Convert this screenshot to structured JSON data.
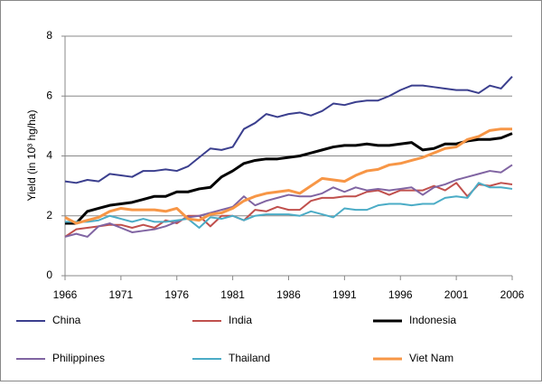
{
  "chart_data": {
    "type": "line",
    "ylabel": "Yield (in 10³ hg/ha)",
    "x": [
      1966,
      1967,
      1968,
      1969,
      1970,
      1971,
      1972,
      1973,
      1974,
      1975,
      1976,
      1977,
      1978,
      1979,
      1980,
      1981,
      1982,
      1983,
      1984,
      1985,
      1986,
      1987,
      1988,
      1989,
      1990,
      1991,
      1992,
      1993,
      1994,
      1995,
      1996,
      1997,
      1998,
      1999,
      2000,
      2001,
      2002,
      2003,
      2004,
      2005,
      2006
    ],
    "xlim": [
      1966,
      2006
    ],
    "xticks": [
      1966,
      1971,
      1976,
      1981,
      1986,
      1991,
      1996,
      2001,
      2006
    ],
    "ylim": [
      0,
      8
    ],
    "yticks": [
      0,
      2,
      4,
      6,
      8
    ],
    "grid": true,
    "legend": "bottom",
    "series": [
      {
        "name": "China",
        "color": "#3b3f8e",
        "values": [
          3.15,
          3.1,
          3.2,
          3.15,
          3.4,
          3.35,
          3.3,
          3.5,
          3.5,
          3.55,
          3.5,
          3.65,
          3.95,
          4.25,
          4.2,
          4.3,
          4.9,
          5.1,
          5.4,
          5.3,
          5.4,
          5.45,
          5.35,
          5.5,
          5.75,
          5.7,
          5.8,
          5.85,
          5.85,
          6.0,
          6.2,
          6.35,
          6.35,
          6.3,
          6.25,
          6.2,
          6.2,
          6.1,
          6.35,
          6.25,
          6.65
        ]
      },
      {
        "name": "India",
        "color": "#c0504d",
        "values": [
          1.3,
          1.55,
          1.6,
          1.65,
          1.7,
          1.7,
          1.6,
          1.7,
          1.6,
          1.85,
          1.75,
          2.0,
          2.0,
          1.65,
          2.0,
          2.0,
          1.85,
          2.2,
          2.15,
          2.3,
          2.2,
          2.2,
          2.5,
          2.6,
          2.6,
          2.65,
          2.65,
          2.8,
          2.85,
          2.7,
          2.85,
          2.85,
          2.85,
          3.0,
          2.85,
          3.1,
          2.65,
          3.05,
          3.0,
          3.1,
          3.05
        ]
      },
      {
        "name": "Indonesia",
        "color": "#000000",
        "values": [
          1.75,
          1.75,
          2.15,
          2.25,
          2.35,
          2.4,
          2.45,
          2.55,
          2.65,
          2.65,
          2.8,
          2.8,
          2.9,
          2.95,
          3.3,
          3.5,
          3.75,
          3.85,
          3.9,
          3.9,
          3.95,
          4.0,
          4.1,
          4.2,
          4.3,
          4.35,
          4.35,
          4.4,
          4.35,
          4.35,
          4.4,
          4.45,
          4.2,
          4.25,
          4.4,
          4.4,
          4.5,
          4.55,
          4.55,
          4.6,
          4.75
        ]
      },
      {
        "name": "Philippines",
        "color": "#8064a2",
        "values": [
          1.3,
          1.4,
          1.3,
          1.65,
          1.75,
          1.6,
          1.45,
          1.5,
          1.55,
          1.65,
          1.8,
          1.95,
          2.0,
          2.1,
          2.2,
          2.3,
          2.65,
          2.35,
          2.5,
          2.6,
          2.7,
          2.65,
          2.65,
          2.75,
          2.95,
          2.8,
          2.95,
          2.85,
          2.9,
          2.85,
          2.9,
          2.95,
          2.7,
          2.95,
          3.05,
          3.2,
          3.3,
          3.4,
          3.5,
          3.45,
          3.7
        ]
      },
      {
        "name": "Thailand",
        "color": "#4bacc6",
        "values": [
          1.8,
          1.8,
          1.8,
          1.85,
          2.0,
          1.9,
          1.8,
          1.9,
          1.8,
          1.8,
          1.85,
          1.9,
          1.6,
          1.95,
          1.9,
          2.0,
          1.85,
          2.0,
          2.05,
          2.05,
          2.05,
          2.0,
          2.15,
          2.05,
          1.95,
          2.25,
          2.2,
          2.2,
          2.35,
          2.4,
          2.4,
          2.35,
          2.4,
          2.4,
          2.6,
          2.65,
          2.6,
          3.1,
          2.95,
          2.95,
          2.9
        ]
      },
      {
        "name": "Viet Nam",
        "color": "#f79646",
        "values": [
          1.95,
          1.75,
          1.85,
          1.95,
          2.15,
          2.25,
          2.2,
          2.2,
          2.2,
          2.15,
          2.25,
          1.9,
          1.85,
          2.05,
          2.1,
          2.25,
          2.5,
          2.65,
          2.75,
          2.8,
          2.85,
          2.75,
          3.0,
          3.25,
          3.2,
          3.15,
          3.35,
          3.5,
          3.55,
          3.7,
          3.75,
          3.85,
          3.95,
          4.1,
          4.25,
          4.3,
          4.55,
          4.65,
          4.85,
          4.9,
          4.9
        ]
      }
    ]
  }
}
